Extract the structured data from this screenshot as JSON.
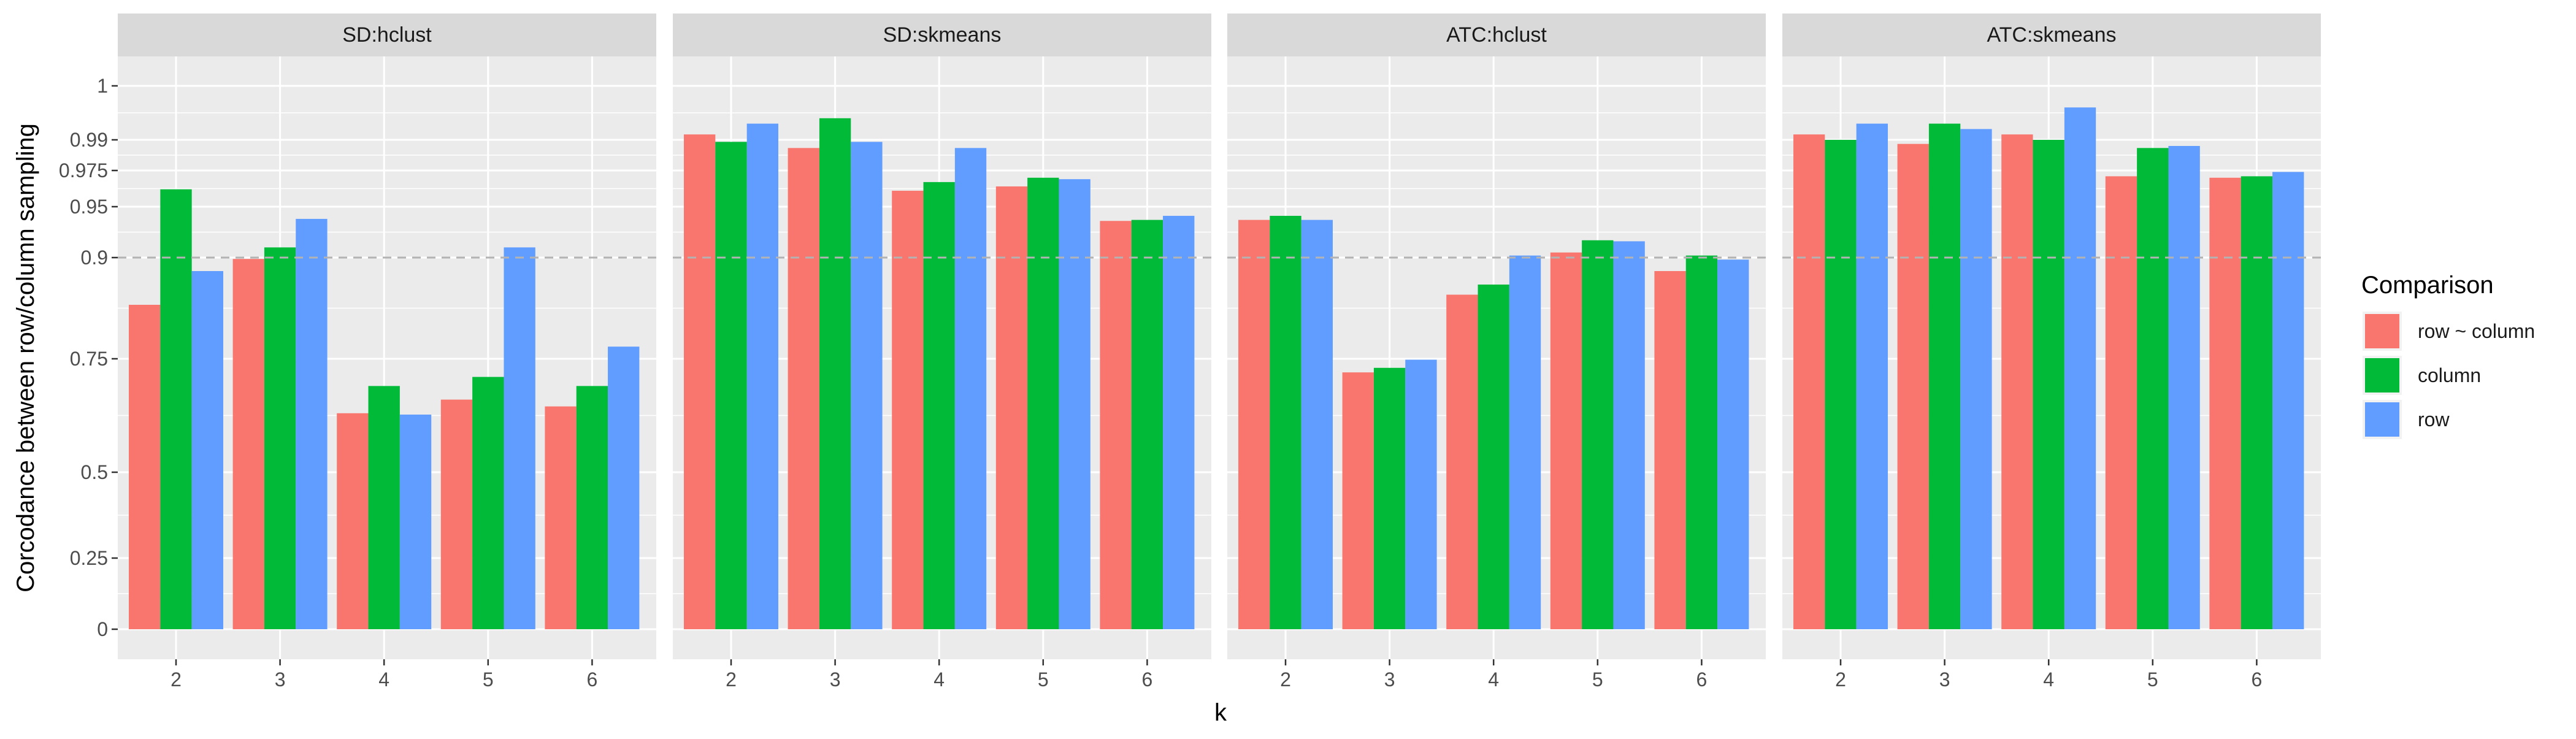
{
  "chart_data": {
    "type": "bar",
    "ylabel": "Corcodance between row/column sampling",
    "xlabel": "k",
    "categories": [
      "2",
      "3",
      "4",
      "5",
      "6"
    ],
    "y_ticks": [
      0,
      0.25,
      0.5,
      0.75,
      0.9,
      0.95,
      0.975,
      0.99,
      1
    ],
    "y_tick_labels": [
      "0",
      "0.25",
      "0.5",
      "0.75",
      "0.9",
      "0.95",
      "0.975",
      "0.99",
      "1"
    ],
    "reference_line": 0.9,
    "legend_title": "Comparison",
    "legend_position": "right",
    "grid": true,
    "colors": {
      "row ~ column": "#F8766D",
      "column": "#00BA38",
      "row": "#619CFF"
    },
    "panels": [
      {
        "title": "SD:hclust",
        "series": [
          {
            "name": "row ~ column",
            "values": [
              0.83,
              0.898,
              0.63,
              0.66,
              0.645
            ]
          },
          {
            "name": "column",
            "values": [
              0.962,
              0.91,
              0.69,
              0.71,
              0.69
            ]
          },
          {
            "name": "row",
            "values": [
              0.88,
              0.938,
              0.627,
              0.91,
              0.768
            ]
          }
        ]
      },
      {
        "title": "SD:skmeans",
        "series": [
          {
            "name": "row ~ column",
            "values": [
              0.991,
              0.986,
              0.961,
              0.964,
              0.936
            ]
          },
          {
            "name": "column",
            "values": [
              0.989,
              0.994,
              0.967,
              0.97,
              0.937
            ]
          },
          {
            "name": "row",
            "values": [
              0.993,
              0.989,
              0.986,
              0.969,
              0.941
            ]
          }
        ]
      },
      {
        "title": "ATC:hclust",
        "series": [
          {
            "name": "row ~ column",
            "values": [
              0.937,
              0.72,
              0.845,
              0.905,
              0.88
            ]
          },
          {
            "name": "column",
            "values": [
              0.941,
              0.73,
              0.86,
              0.917,
              0.902
            ]
          },
          {
            "name": "row",
            "values": [
              0.937,
              0.748,
              0.902,
              0.916,
              0.897
            ]
          }
        ]
      },
      {
        "title": "ATC:skmeans",
        "series": [
          {
            "name": "row ~ column",
            "values": [
              0.991,
              0.988,
              0.991,
              0.971,
              0.97
            ]
          },
          {
            "name": "column",
            "values": [
              0.99,
              0.993,
              0.99,
              0.986,
              0.971
            ]
          },
          {
            "name": "row",
            "values": [
              0.993,
              0.992,
              0.996,
              0.987,
              0.974
            ]
          }
        ]
      }
    ]
  }
}
